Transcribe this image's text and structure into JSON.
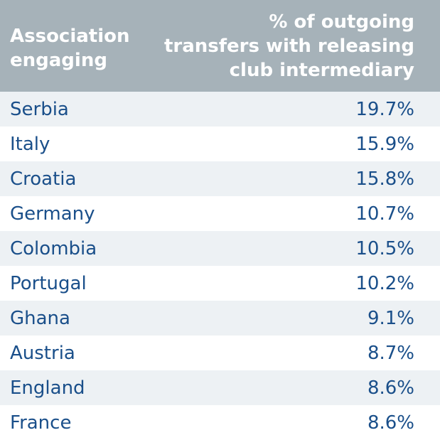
{
  "chart_data": {
    "type": "table",
    "columns": [
      "Association engaging",
      "% of outgoing transfers with releasing club intermediary"
    ],
    "header_lines": {
      "left": [
        "Association",
        "engaging"
      ],
      "right": [
        "% of outgoing",
        "transfers with releasing",
        "club intermediary"
      ]
    },
    "rows": [
      {
        "country": "Serbia",
        "value": "19.7%"
      },
      {
        "country": "Italy",
        "value": "15.9%"
      },
      {
        "country": "Croatia",
        "value": "15.8%"
      },
      {
        "country": "Germany",
        "value": "10.7%"
      },
      {
        "country": "Colombia",
        "value": "10.5%"
      },
      {
        "country": "Portugal",
        "value": "10.2%"
      },
      {
        "country": "Ghana",
        "value": "9.1%"
      },
      {
        "country": "Austria",
        "value": "8.7%"
      },
      {
        "country": "England",
        "value": "8.6%"
      },
      {
        "country": "France",
        "value": "8.6%"
      }
    ],
    "values": [
      19.7,
      15.9,
      15.8,
      10.7,
      10.5,
      10.2,
      9.1,
      8.7,
      8.6,
      8.6
    ]
  },
  "colors": {
    "header_bg": "#a6b2b9",
    "header_text": "#ffffff",
    "row_shade": "#edf1f4",
    "row_plain": "#ffffff",
    "body_text": "#1a4f8a"
  }
}
